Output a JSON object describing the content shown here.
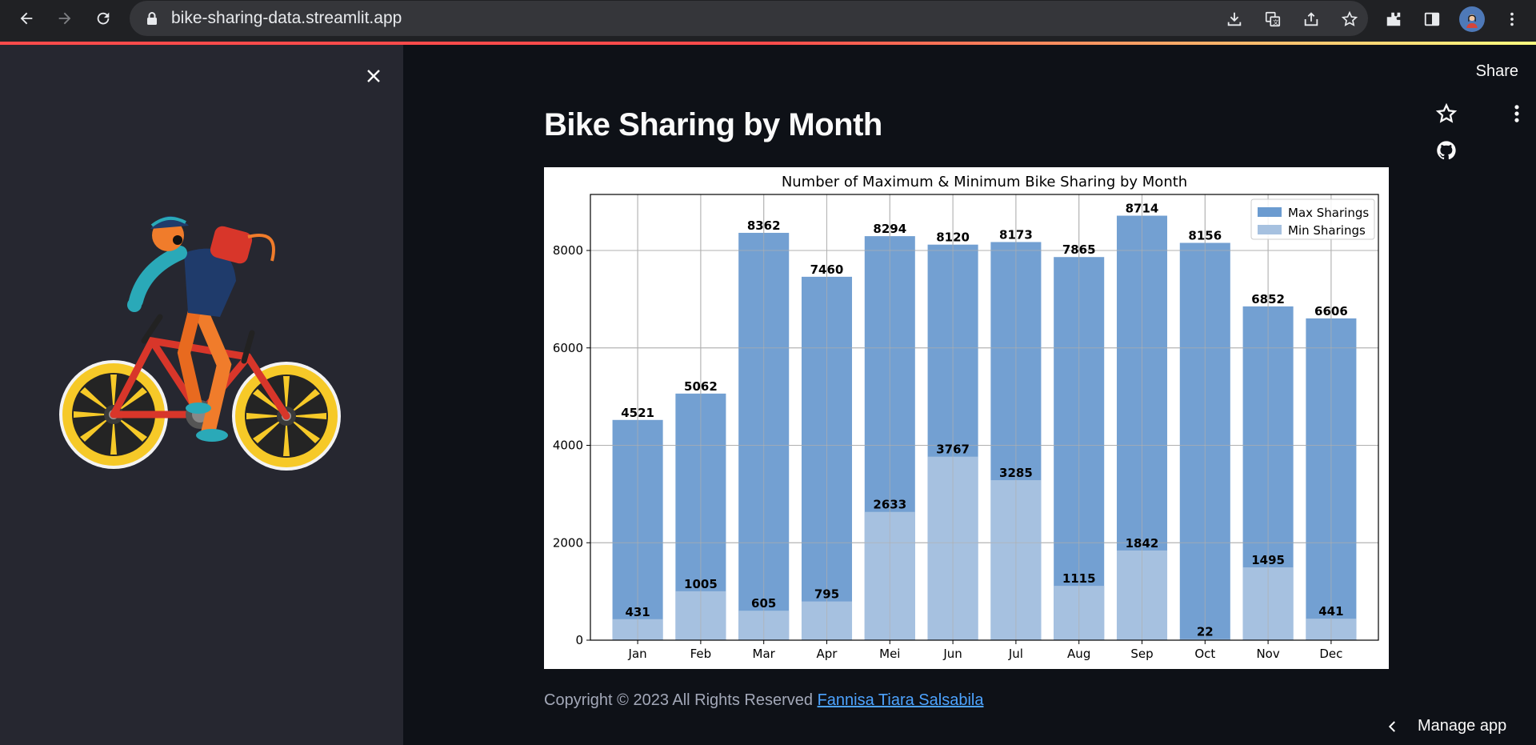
{
  "browser": {
    "url": "bike-sharing-data.streamlit.app"
  },
  "header": {
    "share_label": "Share"
  },
  "main": {
    "title": "Bike Sharing by Month"
  },
  "footer": {
    "text": "Copyright © 2023 All Rights Reserved ",
    "link_text": "Fannisa Tiara Salsabila"
  },
  "manage_app_label": "Manage app",
  "colors": {
    "max_bar": "#6b9bd0",
    "min_bar": "#a6c1e0",
    "progress_start": "#ff4b4b",
    "progress_end": "#fffd80"
  },
  "chart_data": {
    "type": "bar",
    "title": "Number of Maximum & Minimum Bike Sharing by Month",
    "xlabel": "",
    "ylabel": "",
    "ylim": [
      0,
      9150
    ],
    "yticks": [
      0,
      2000,
      4000,
      6000,
      8000
    ],
    "grid": true,
    "legend_position": "top-right",
    "categories": [
      "Jan",
      "Feb",
      "Mar",
      "Apr",
      "Mei",
      "Jun",
      "Jul",
      "Aug",
      "Sep",
      "Oct",
      "Nov",
      "Dec"
    ],
    "series": [
      {
        "name": "Max Sharings",
        "values": [
          4521,
          5062,
          8362,
          7460,
          8294,
          8120,
          8173,
          7865,
          8714,
          8156,
          6852,
          6606
        ]
      },
      {
        "name": "Min Sharings",
        "values": [
          431,
          1005,
          605,
          795,
          2633,
          3767,
          3285,
          1115,
          1842,
          22,
          1495,
          441
        ]
      }
    ]
  }
}
